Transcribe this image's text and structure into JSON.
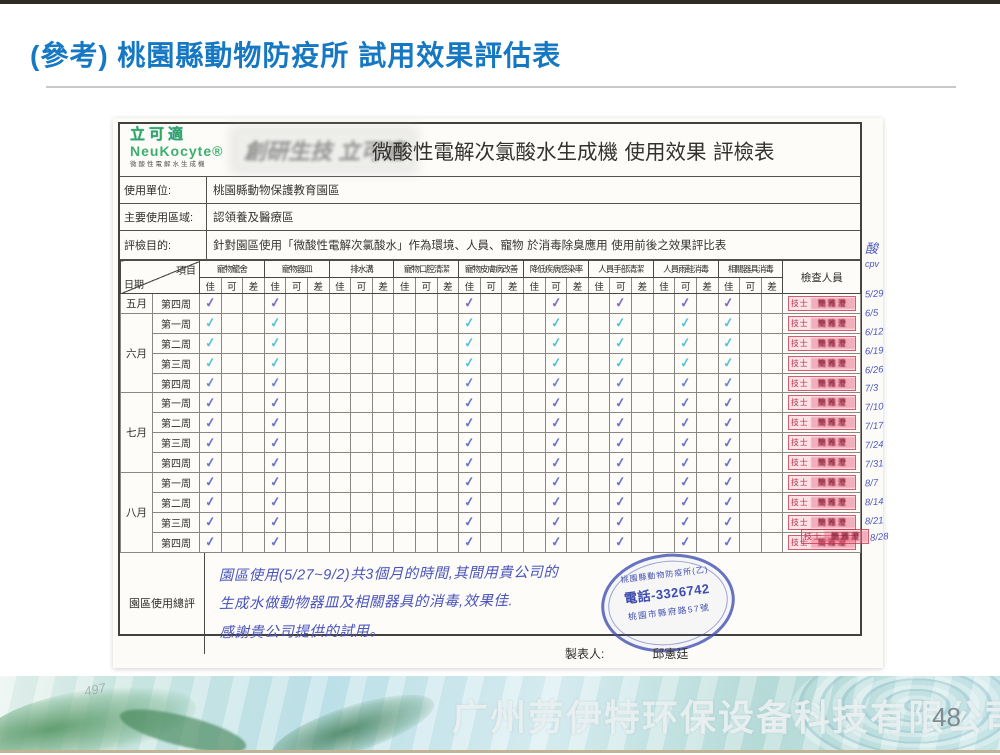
{
  "slide": {
    "title": "(參考) 桃園縣動物防疫所 試用效果評估表",
    "watermark": "广州劳伊特环保设备科技有限公司",
    "page_number": "48",
    "corner_mark": "497",
    "accent_color": "#1678c2"
  },
  "form": {
    "logo": {
      "brand_cn": "立可適",
      "brand_en": "NeuKocyte®",
      "tagline": "微酸性電解水生成機"
    },
    "ghost_text": "創研生技 立可適",
    "title": "微酸性電解次氯酸水生成機 使用效果 評檢表",
    "info_rows": [
      {
        "label": "使用單位:",
        "value": "桃園縣動物保護教育園區"
      },
      {
        "label": "主要使用區域:",
        "value": "認領養及醫療區"
      },
      {
        "label": "評檢目的:",
        "value": "針對園區使用「微酸性電解次氯酸水」作為環境、人員、寵物 於消毒除臭應用 使用前後之效果評比表"
      }
    ],
    "margin_notes": [
      "酸",
      "cpv"
    ],
    "table": {
      "corner_top": "項目",
      "corner_bottom": "日期",
      "ratings": [
        "佳",
        "可",
        "差"
      ],
      "groups": [
        "寵物籠舍",
        "寵物器皿",
        "排水溝",
        "寵物口腔清潔",
        "寵物皮膚病改善",
        "降低疾病感染率",
        "人員手部清潔",
        "人員雨鞋消毒",
        "相關器具消毒"
      ],
      "inspector_header": "檢查人員",
      "stamp_prefix": "技士",
      "inspector_name": "簡雅澄",
      "rows": [
        {
          "month": "五月",
          "week": "第四周",
          "date": "5/29",
          "ink": "#7f6cc0",
          "checks": [
            "佳",
            "佳",
            "",
            "",
            "佳",
            "可",
            "可",
            "可",
            "佳"
          ]
        },
        {
          "month": "六月",
          "week": "第一周",
          "date": "6/5",
          "ink": "#58c3d8",
          "checks": [
            "佳",
            "佳",
            "",
            "",
            "佳",
            "可",
            "可",
            "可",
            "佳"
          ]
        },
        {
          "month": "六月",
          "week": "第二周",
          "date": "6/12",
          "ink": "#58c3d8",
          "checks": [
            "佳",
            "佳",
            "",
            "",
            "佳",
            "可",
            "可",
            "可",
            "佳"
          ]
        },
        {
          "month": "六月",
          "week": "第三周",
          "date": "6/19",
          "ink": "#58c3d8",
          "checks": [
            "佳",
            "佳",
            "",
            "",
            "佳",
            "可",
            "可",
            "可",
            "佳"
          ]
        },
        {
          "month": "六月",
          "week": "第四周",
          "date": "6/26",
          "ink": "#6f86cc",
          "checks": [
            "佳",
            "佳",
            "",
            "",
            "佳",
            "可",
            "可",
            "可",
            "佳"
          ]
        },
        {
          "month": "七月",
          "week": "第一周",
          "date": "7/3",
          "ink": "#6a74c8",
          "checks": [
            "佳",
            "佳",
            "",
            "",
            "佳",
            "可",
            "可",
            "可",
            "佳"
          ]
        },
        {
          "month": "七月",
          "week": "第二周",
          "date": "7/10",
          "ink": "#6a74c8",
          "checks": [
            "佳",
            "佳",
            "",
            "",
            "佳",
            "可",
            "可",
            "可",
            "佳"
          ]
        },
        {
          "month": "七月",
          "week": "第三周",
          "date": "7/17",
          "ink": "#6a74c8",
          "checks": [
            "佳",
            "佳",
            "",
            "",
            "佳",
            "可",
            "可",
            "可",
            "佳"
          ]
        },
        {
          "month": "七月",
          "week": "第四周",
          "date": "7/24",
          "ink": "#6a74c8",
          "checks": [
            "佳",
            "佳",
            "",
            "",
            "佳",
            "可",
            "可",
            "可",
            "佳"
          ]
        },
        {
          "month": "八月",
          "week": "第一周",
          "date": "7/31",
          "ink": "#6a74c8",
          "checks": [
            "佳",
            "佳",
            "",
            "",
            "佳",
            "可",
            "可",
            "可",
            "佳"
          ]
        },
        {
          "month": "八月",
          "week": "第二周",
          "date": "8/7",
          "ink": "#6a74c8",
          "checks": [
            "佳",
            "佳",
            "",
            "",
            "佳",
            "可",
            "可",
            "可",
            "佳"
          ]
        },
        {
          "month": "八月",
          "week": "第三周",
          "date": "8/14",
          "ink": "#6a74c8",
          "checks": [
            "佳",
            "佳",
            "",
            "",
            "佳",
            "可",
            "可",
            "可",
            "佳"
          ]
        },
        {
          "month": "八月",
          "week": "第四周",
          "date": "8/21",
          "ink": "#6a74c8",
          "checks": [
            "佳",
            "佳",
            "",
            "",
            "佳",
            "可",
            "可",
            "可",
            "佳"
          ]
        }
      ],
      "overflow_date": "8/28"
    },
    "summary": {
      "label": "園區使用總評",
      "lines": [
        "園區使用(5/27~9/2)共3個月的時間,其間用貴公司的",
        "生成水做動物器皿及相關器具的消毒,效果佳.",
        "感謝貴公司提供的試用。"
      ]
    },
    "oval_stamp": {
      "top": "桃園縣動物防疫所(乙)",
      "middle": "電話-3326742",
      "bottom": "桃園市縣府路57號"
    },
    "footer": {
      "label": "製表人:",
      "value": "邱憲廷"
    }
  }
}
